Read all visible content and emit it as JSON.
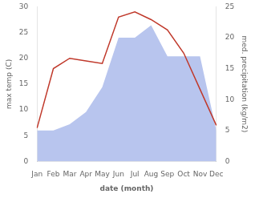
{
  "chart_data": {
    "type": "line",
    "categories": [
      "Jan",
      "Feb",
      "Mar",
      "Apr",
      "May",
      "Jun",
      "Jul",
      "Aug",
      "Sep",
      "Oct",
      "Nov",
      "Dec"
    ],
    "series": [
      {
        "type": "area",
        "color": "#b8c5ee",
        "axis": "y2",
        "values": [
          5.0,
          5.0,
          6.0,
          8.0,
          12.0,
          20.0,
          20.0,
          22.0,
          17.0,
          17.0,
          17.0,
          5.0
        ]
      },
      {
        "type": "line",
        "color": "#c0392b",
        "values": [
          6.5,
          18.0,
          20.0,
          19.5,
          19.0,
          28.0,
          29.0,
          27.5,
          25.5,
          21.0,
          14.0,
          7.0
        ]
      }
    ],
    "xlabel": "date (month)",
    "ylabel": "max temp (C)",
    "y2label": "med. precipitation (kg/m2)",
    "ylim": [
      0,
      30
    ],
    "yticks": [
      0,
      5,
      10,
      15,
      20,
      25,
      30
    ],
    "y2lim": [
      0,
      25
    ],
    "y2ticks": [
      0,
      5,
      10,
      15,
      20,
      25
    ],
    "grid": false
  }
}
